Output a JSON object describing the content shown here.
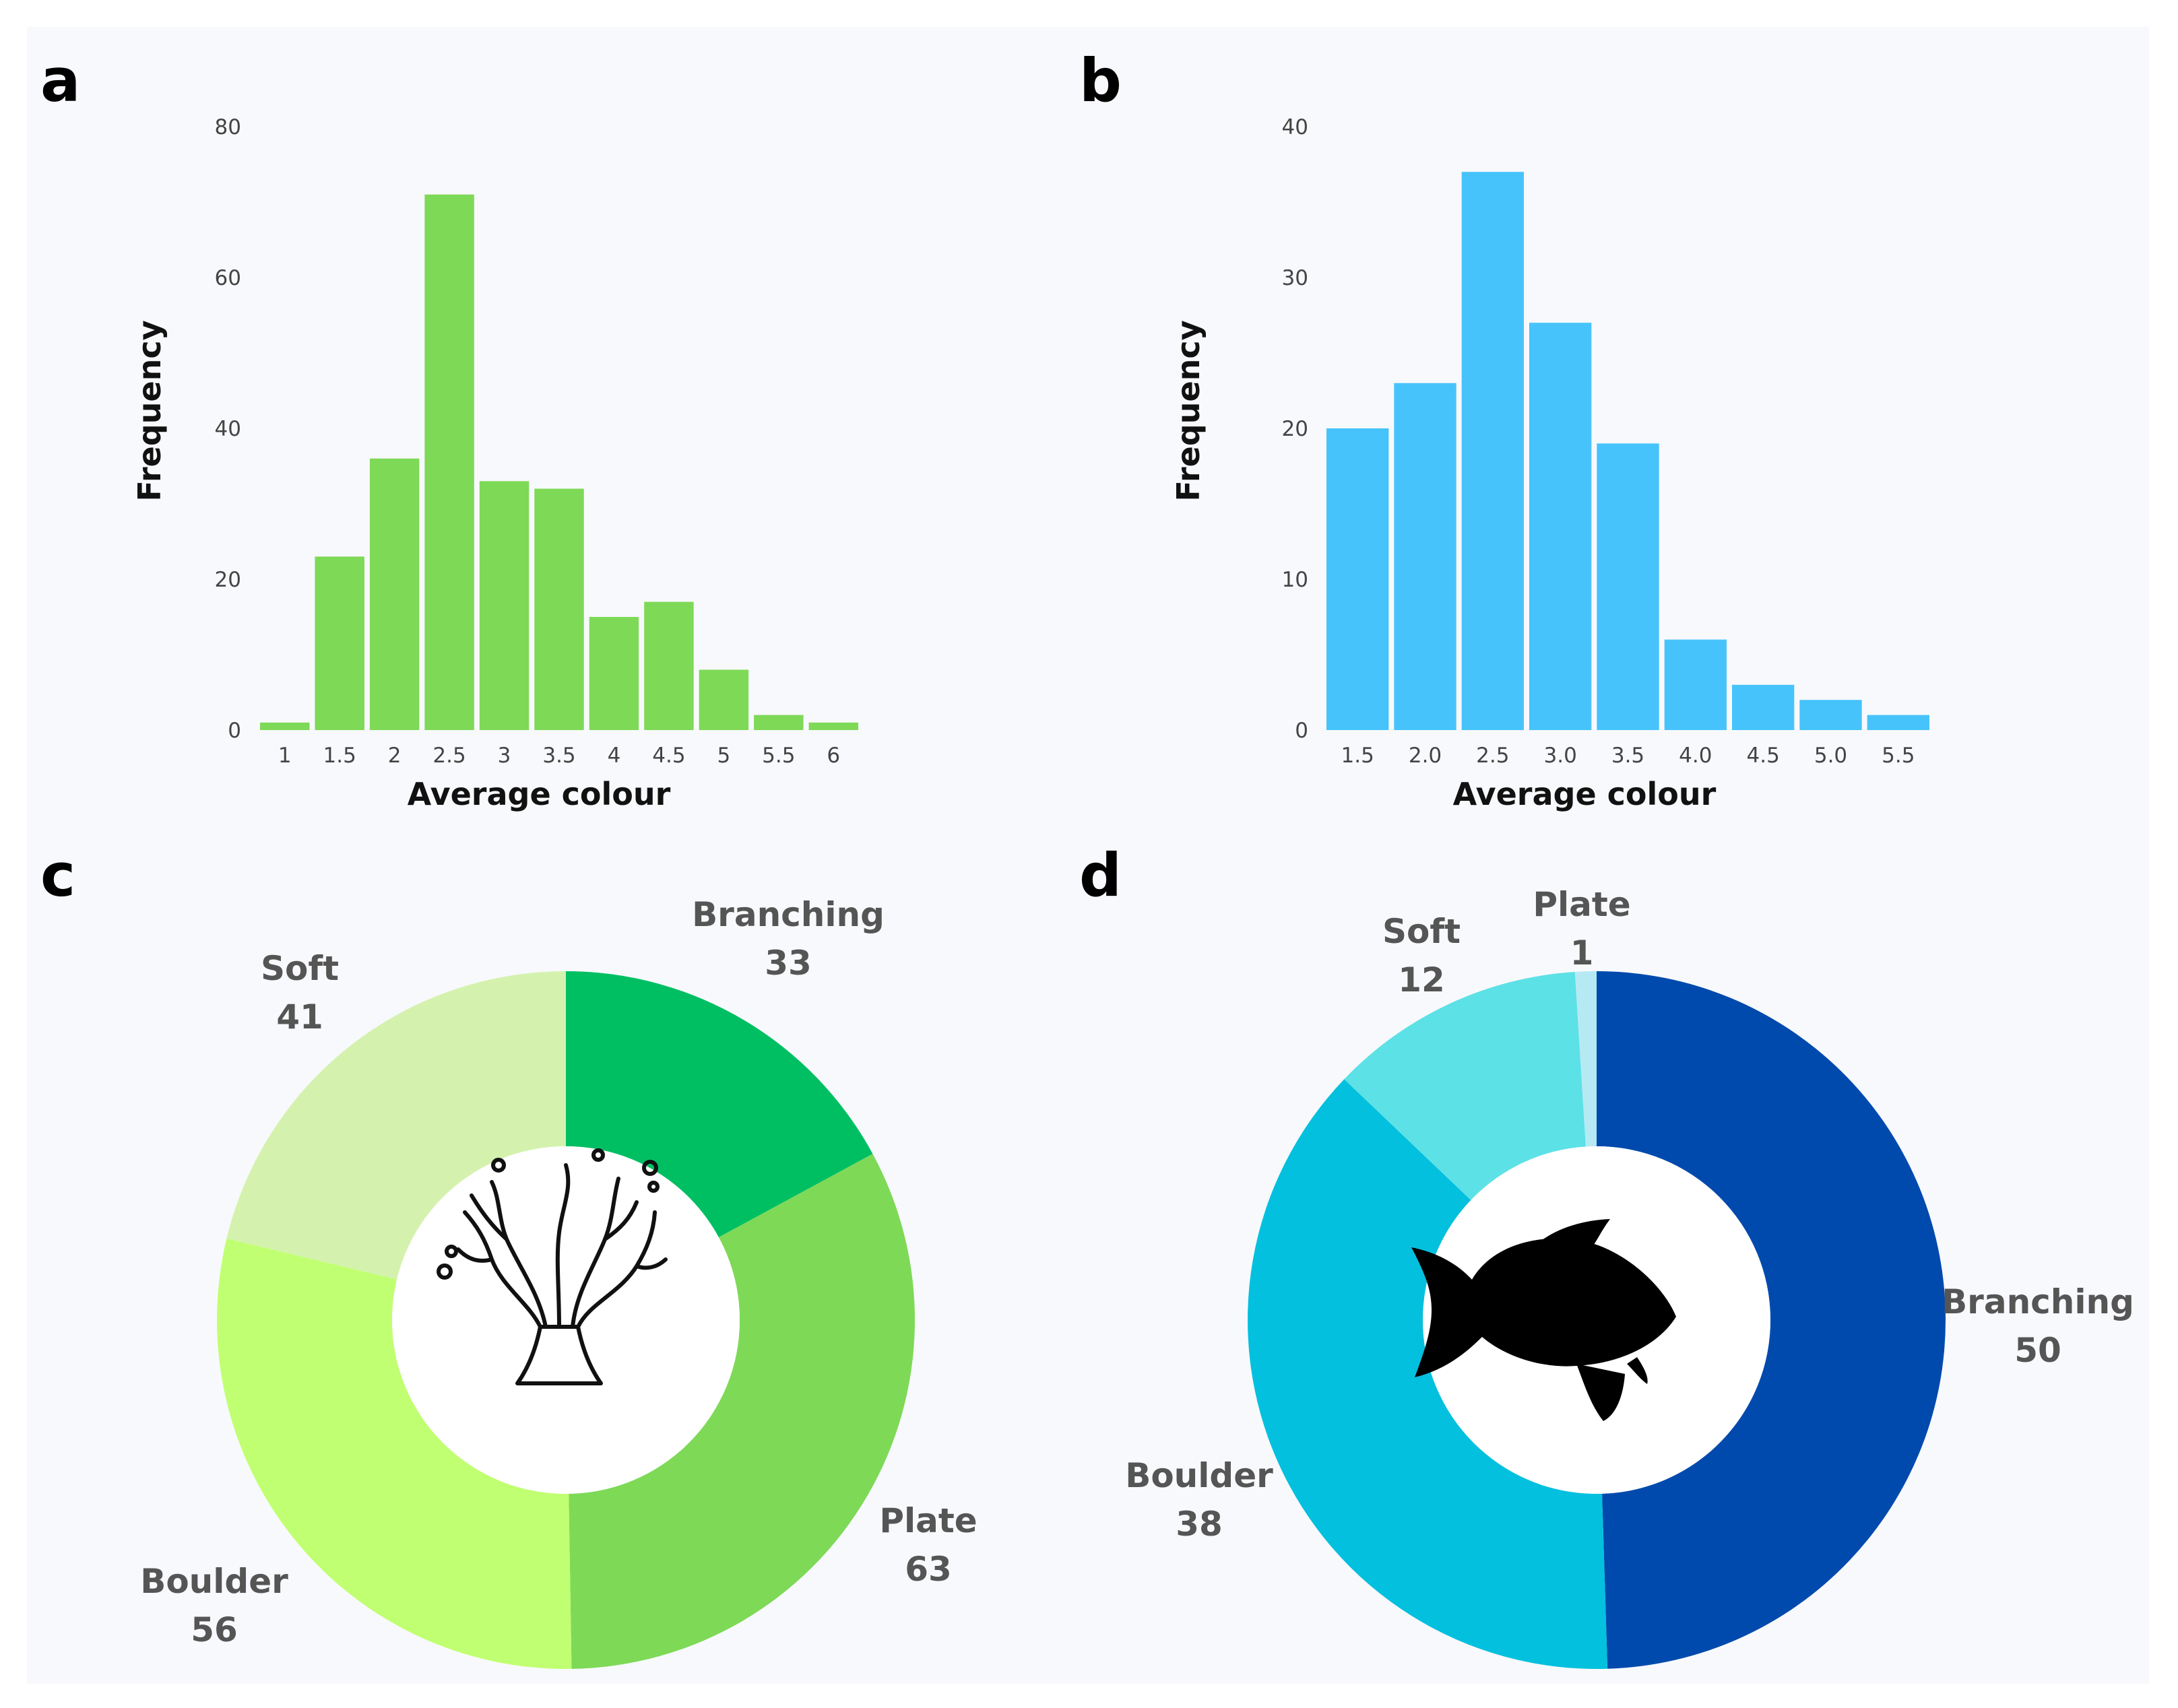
{
  "panels": [
    "a",
    "b",
    "c",
    "d"
  ],
  "chart_data": [
    {
      "id": "a",
      "type": "bar",
      "title": "",
      "xlabel": "Average colour",
      "ylabel": "Frequency",
      "ylim": [
        0,
        80
      ],
      "yticks": [
        "0",
        "20",
        "40",
        "60",
        "80"
      ],
      "categories": [
        "1",
        "1.5",
        "2",
        "2.5",
        "3",
        "3.5",
        "4",
        "4.5",
        "5",
        "5.5",
        "6"
      ],
      "values": [
        1,
        23,
        36,
        71,
        33,
        32,
        15,
        17,
        8,
        2,
        1
      ],
      "color": "#7ed957"
    },
    {
      "id": "b",
      "type": "bar",
      "title": "",
      "xlabel": "Average colour",
      "ylabel": "Frequency",
      "ylim": [
        0,
        40
      ],
      "yticks": [
        "0",
        "10",
        "20",
        "30",
        "40"
      ],
      "categories": [
        "1.5",
        "2.0",
        "2.5",
        "3.0",
        "3.5",
        "4.0",
        "4.5",
        "5.0",
        "5.5"
      ],
      "values": [
        20,
        23,
        37,
        27,
        19,
        6,
        3,
        2,
        1
      ],
      "color": "#47c3fb"
    },
    {
      "id": "c",
      "type": "pie",
      "title": "",
      "center_icon": "coral-icon",
      "categories": [
        "Branching",
        "Plate",
        "Boulder",
        "Soft"
      ],
      "values": [
        33,
        63,
        56,
        41
      ],
      "colors": [
        "#00bf63",
        "#7ed957",
        "#c1ff72",
        "#d4f2ae"
      ]
    },
    {
      "id": "d",
      "type": "pie",
      "title": "",
      "center_icon": "fish-icon",
      "categories": [
        "Branching",
        "Boulder",
        "Soft",
        "Plate"
      ],
      "values": [
        50,
        38,
        12,
        1
      ],
      "colors": [
        "#004aad",
        "#03c0de",
        "#5ce1e6",
        "#b5eaf4"
      ]
    }
  ]
}
